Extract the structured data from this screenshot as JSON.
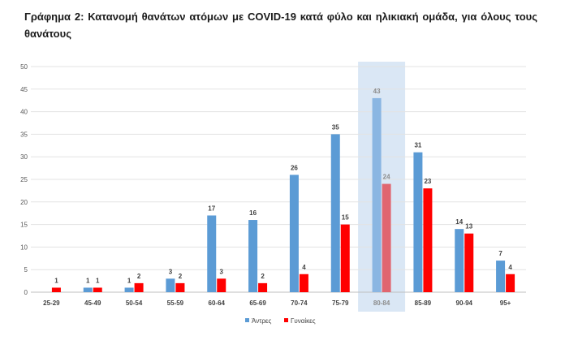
{
  "title": "Γράφημα 2: Κατανομή θανάτων ατόμων με COVID-19 κατά φύλο και ηλικιακή ομάδα, για όλους τους θανάτους",
  "chart_data": {
    "type": "bar",
    "title": "Γράφημα 2: Κατανομή θανάτων ατόμων με COVID-19 κατά φύλο και ηλικιακή ομάδα, για όλους τους θανάτους",
    "categories": [
      "25-29",
      "45-49",
      "50-54",
      "55-59",
      "60-64",
      "65-69",
      "70-74",
      "75-79",
      "80-84",
      "85-89",
      "90-94",
      "95+"
    ],
    "series": [
      {
        "name": "Άντρες",
        "color": "#5b9bd5",
        "values": [
          0,
          1,
          1,
          3,
          17,
          16,
          26,
          35,
          43,
          31,
          14,
          7
        ]
      },
      {
        "name": "Γυναίκες",
        "color": "#ff0000",
        "values": [
          1,
          1,
          2,
          2,
          3,
          2,
          4,
          15,
          24,
          23,
          13,
          4
        ]
      }
    ],
    "highlighted_category": "80-84",
    "ylim": [
      0,
      50
    ],
    "yticks": [
      0,
      5,
      10,
      15,
      20,
      25,
      30,
      35,
      40,
      45,
      50
    ],
    "grid": true,
    "legend": "bottom-center",
    "data_labels": true
  }
}
